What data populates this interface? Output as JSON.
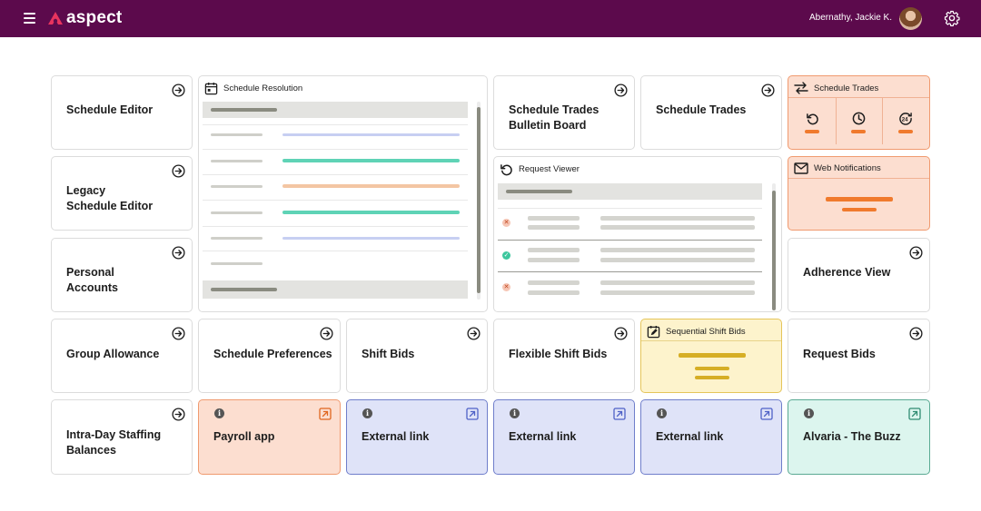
{
  "header": {
    "brand": "aspect",
    "user_name": "Abernathy, Jackie K.",
    "icons": [
      "menu-icon",
      "aspect-logo-icon",
      "avatar",
      "gear-icon"
    ]
  },
  "colors": {
    "topbar": "#5c0a4c",
    "brand_accent": "#e8345e",
    "orange_tile": "#fcded0",
    "yellow_tile": "#fdf3cc",
    "blue_tile": "#dfe3f8",
    "green_tile": "#dcf5ee",
    "teal_bar": "#5fd3b6",
    "lavender_bar": "#c7cff2",
    "peach_bar": "#f3c6a3"
  },
  "tiles": {
    "schedule_editor": "Schedule Editor",
    "legacy_line1": "Legacy",
    "legacy_line2": "Schedule Editor",
    "personal_line1": "Personal",
    "personal_line2": "Accounts",
    "group_allowance": "Group Allowance",
    "intra_line1": "Intra-Day Staffing",
    "intra_line2": "Balances",
    "schedule_resolution": "Schedule Resolution",
    "trades_bulletin_line1": "Schedule Trades",
    "trades_bulletin_line2": "Bulletin Board",
    "schedule_trades": "Schedule Trades",
    "schedule_trades_widget": "Schedule Trades",
    "web_notifications": "Web Notifications",
    "request_viewer": "Request Viewer",
    "adherence_view": "Adherence View",
    "schedule_preferences": "Schedule Preferences",
    "shift_bids": "Shift Bids",
    "flexible_shift_bids": "Flexible Shift Bids",
    "sequential_shift_bids": "Sequential Shift Bids",
    "request_bids": "Request Bids",
    "payroll_app": "Payroll app",
    "external_link_1": "External link",
    "external_link_2": "External link",
    "external_link_3": "External link",
    "alvaria_buzz": "Alvaria - The Buzz"
  },
  "request_viewer_rows": [
    {
      "status": "rejected"
    },
    {
      "status": "approved"
    },
    {
      "status": "rejected"
    }
  ],
  "schedule_trades_icons": [
    "undo-icon",
    "clock-icon",
    "24h-icon"
  ]
}
